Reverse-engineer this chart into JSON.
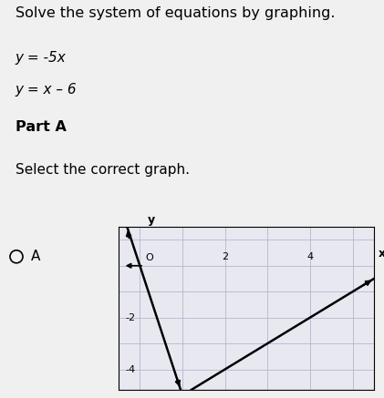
{
  "line1_slope": -5,
  "line1_intercept": 0,
  "line2_slope": 1,
  "line2_intercept": -6,
  "xmin": -0.5,
  "xmax": 5.5,
  "ymin": -4.8,
  "ymax": 1.5,
  "xticks": [
    2,
    4
  ],
  "yticks": [
    -2,
    -4
  ],
  "grid_color": "#b0b8d0",
  "line_color": "#000000",
  "bg_color": "#f0f0f0",
  "graph_bg": "#e8e8f0",
  "graph_x_label": "x",
  "graph_y_label": "y",
  "graph_origin_label": "O",
  "title": "Solve the system of equations by graphing.",
  "eq1": "y = -5x",
  "eq2": "y = x – 6",
  "part_label": "Part A",
  "select_text": "Select the correct graph.",
  "option_circle": true,
  "option_letter": "A"
}
